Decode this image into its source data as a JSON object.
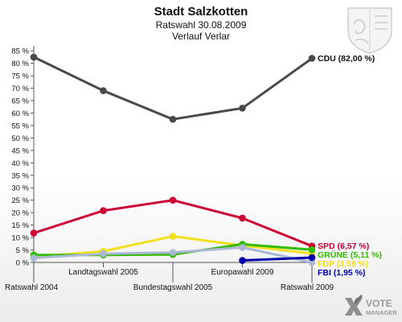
{
  "chart_data": {
    "type": "line",
    "title": "Stadt Salzkotten",
    "subtitle": "Ratswahl 30.08.2009",
    "subtitle2": "Verlauf Verlar",
    "categories": [
      "Ratswahl 2004",
      "Landtagswahl 2005",
      "Bundestagswahl 2005",
      "Europawahl 2009",
      "Ratswahl 2009"
    ],
    "ylim": [
      0,
      87
    ],
    "yticks": [
      0,
      5,
      10,
      15,
      20,
      25,
      30,
      35,
      40,
      45,
      50,
      55,
      60,
      65,
      70,
      75,
      80,
      85
    ],
    "ytick_labels": [
      "0 %",
      "5 %",
      "10 %",
      "15 %",
      "20 %",
      "25 %",
      "30 %",
      "35 %",
      "40 %",
      "45 %",
      "50 %",
      "55 %",
      "60 %",
      "65 %",
      "70 %",
      "75 %",
      "80 %",
      "85 %"
    ],
    "grid": false,
    "series": [
      {
        "name": "CDU",
        "color": "#4a4a4a",
        "values": [
          82.5,
          69.0,
          57.5,
          62.0,
          82.0
        ],
        "end_label": "CDU (82,00 %)"
      },
      {
        "name": "SPD",
        "color": "#cc0033",
        "values": [
          11.8,
          20.8,
          25.0,
          17.8,
          6.57
        ],
        "end_label": "SPD (6,57 %)"
      },
      {
        "name": "FDP",
        "color": "#f0e020",
        "values": [
          2.2,
          4.5,
          10.5,
          6.8,
          3.59
        ],
        "end_label": "FDP (3,59 %)"
      },
      {
        "name": "GRÜNE",
        "color": "#33bb00",
        "values": [
          3.0,
          3.0,
          3.2,
          7.3,
          5.11
        ],
        "end_label": "GRÜNE (5,11 %)"
      },
      {
        "name": "",
        "color": "#aab8d6",
        "values": [
          1.8,
          3.5,
          4.0,
          6.0,
          0.0
        ],
        "end_label": ""
      },
      {
        "name": "FBI",
        "color": "#0000aa",
        "values": [
          null,
          null,
          null,
          0.8,
          1.95
        ],
        "end_label": "FBI (1,95 %)"
      }
    ]
  },
  "logo": {
    "line1": "VOTE",
    "line2": "MANAGER",
    "icon": "vote-x-icon"
  },
  "crest": {
    "icon": "coat-of-arms-icon"
  }
}
